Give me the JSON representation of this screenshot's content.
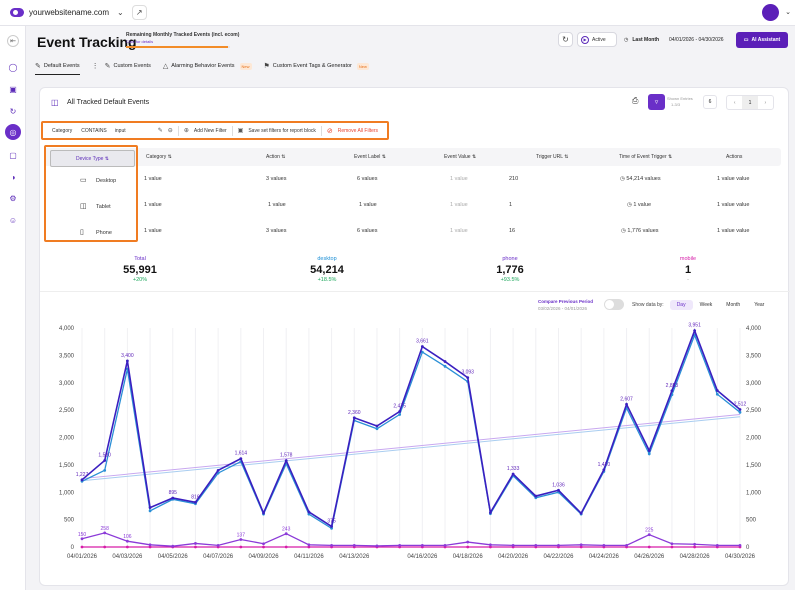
{
  "topbar": {
    "website": "yourwebsitename.com"
  },
  "header": {
    "title": "Event Tracking",
    "tracked_label": "Remaining Monthly Tracked Events (incl. ecom)",
    "tracked_link": "Click for details",
    "tracked_fill_fraction": 0.98,
    "active_label": "Active",
    "period_label": "Last Month",
    "date_range": "04/01/2026 - 04/30/2026",
    "ai_label": "AI Assistant"
  },
  "tabs": [
    {
      "label": "Default Events",
      "new": ""
    },
    {
      "label": "Custom Events",
      "new": ""
    },
    {
      "label": "Alarming Behavior Events",
      "new": "New"
    },
    {
      "label": "Custom Event Tags & Generator",
      "new": "New"
    }
  ],
  "card": {
    "title": "All Tracked Default Events",
    "shown_label": "Shown Entries",
    "shown_range": "1-3/3",
    "per_page": "6",
    "page": "1"
  },
  "filter": {
    "field": "Category",
    "operator": "CONTAINS",
    "value": "input",
    "add_label": "Add New Filter",
    "save_label": "Save set filters for report block",
    "remove_label": "Remove All Filters"
  },
  "table": {
    "headers": [
      "Device Type",
      "Category",
      "Action",
      "Event Label",
      "Event Value",
      "Trigger URL",
      "Time of Event Trigger",
      "Actions"
    ],
    "rows": [
      {
        "device": "Desktop",
        "category": "1 value",
        "action": "3 values",
        "label": "6 values",
        "value": "1 value",
        "url": "210",
        "time": "54,214 values",
        "actions": "1 value value"
      },
      {
        "device": "Tablet",
        "category": "1 value",
        "action": "1 value",
        "label": "1 value",
        "value": "1 value",
        "url": "1",
        "time": "1 value",
        "actions": "1 value value"
      },
      {
        "device": "Phone",
        "category": "1 value",
        "action": "3 values",
        "label": "6 values",
        "value": "1 value",
        "url": "16",
        "time": "1,776 values",
        "actions": "1 value value"
      }
    ]
  },
  "kpis": [
    {
      "label": "Total",
      "value": "55,991",
      "change": "+20%",
      "color": "#6a2fc8"
    },
    {
      "label": "desktop",
      "value": "54,214",
      "change": "+18.5%",
      "color": "#1c8fd6"
    },
    {
      "label": "phone",
      "value": "1,776",
      "change": "+93.5%",
      "color": "#6a2fc8"
    },
    {
      "label": "mobile",
      "value": "1",
      "change": "-",
      "color": "#d61ca8"
    }
  ],
  "compare": {
    "label": "Compare Previous Period",
    "range": "03/02/2026 - 04/01/2026"
  },
  "show_by": {
    "label": "Show data by:",
    "options": [
      "Day",
      "Week",
      "Month",
      "Year"
    ],
    "selected": "Day"
  },
  "chart_data": {
    "type": "line",
    "x": [
      "04/01/2026",
      "04/02/2026",
      "04/03/2026",
      "04/04/2026",
      "04/05/2026",
      "04/06/2026",
      "04/07/2026",
      "04/08/2026",
      "04/09/2026",
      "04/10/2026",
      "04/11/2026",
      "04/12/2026",
      "04/13/2026",
      "04/14/2026",
      "04/15/2026",
      "04/16/2026",
      "04/17/2026",
      "04/18/2026",
      "04/19/2026",
      "04/20/2026",
      "04/21/2026",
      "04/22/2026",
      "04/23/2026",
      "04/24/2026",
      "04/25/2026",
      "04/26/2026",
      "04/27/2026",
      "04/28/2026",
      "04/29/2026",
      "04/30/2026"
    ],
    "xticks": [
      "04/01/2026",
      "04/03/2026",
      "04/05/2026",
      "04/07/2026",
      "04/09/2026",
      "04/11/2026",
      "04/13/2026",
      "04/16/2026",
      "04/18/2026",
      "04/20/2026",
      "04/22/2026",
      "04/24/2026",
      "04/26/2026",
      "04/28/2026",
      "04/30/2026"
    ],
    "yticks": [
      "0",
      "500",
      "1,000",
      "1,500",
      "2,000",
      "2,500",
      "3,000",
      "3,500",
      "4,000"
    ],
    "ylim": [
      0,
      4000
    ],
    "series": [
      {
        "name": "Total",
        "color": "#3a1fc0",
        "values": [
          1227,
          1580,
          3400,
          720,
          895,
          816,
          1400,
          1614,
          620,
          1578,
          640,
          375,
          2360,
          2210,
          2475,
          3661,
          3387,
          3093,
          630,
          1333,
          930,
          1036,
          616,
          1410,
          2607,
          1760,
          2853,
          3951,
          2858,
          2512
        ]
      },
      {
        "name": "desktop",
        "color": "#2a8fd6",
        "values": [
          1200,
          1400,
          3250,
          660,
          870,
          790,
          1350,
          1560,
          600,
          1520,
          600,
          340,
          2310,
          2160,
          2420,
          3560,
          3300,
          3020,
          610,
          1300,
          900,
          1000,
          600,
          1380,
          2540,
          1700,
          2780,
          3870,
          2790,
          2460
        ]
      },
      {
        "name": "phone",
        "color": "#8b3ad8",
        "values": [
          150,
          258,
          106,
          40,
          15,
          65,
          30,
          137,
          60,
          243,
          40,
          30,
          30,
          20,
          30,
          30,
          30,
          90,
          40,
          30,
          30,
          30,
          40,
          30,
          30,
          225,
          60,
          50,
          30,
          30
        ]
      },
      {
        "name": "mobile",
        "color": "#d61ca8",
        "values": [
          0,
          0,
          0,
          0,
          0,
          0,
          0,
          0,
          0,
          0,
          0,
          0,
          0,
          0,
          0,
          0,
          0,
          0,
          0,
          0,
          0,
          0,
          0,
          0,
          0,
          0,
          0,
          0,
          0,
          0
        ]
      }
    ],
    "point_labels": [
      {
        "i": 0,
        "text": "1,227"
      },
      {
        "i": 1,
        "text": "1,580"
      },
      {
        "i": 2,
        "text": "3,400"
      },
      {
        "i": 4,
        "text": "895"
      },
      {
        "i": 5,
        "text": "816"
      },
      {
        "i": 7,
        "text": "1,614"
      },
      {
        "i": 9,
        "text": "1,578"
      },
      {
        "i": 11,
        "text": "375"
      },
      {
        "i": 12,
        "text": "2,360"
      },
      {
        "i": 14,
        "text": "2,475"
      },
      {
        "i": 15,
        "text": "3,661"
      },
      {
        "i": 17,
        "text": "3,093"
      },
      {
        "i": 19,
        "text": "1,333"
      },
      {
        "i": 21,
        "text": "1,036"
      },
      {
        "i": 23,
        "text": "1,410"
      },
      {
        "i": 24,
        "text": "2,607"
      },
      {
        "i": 26,
        "text": "2,853"
      },
      {
        "i": 27,
        "text": "3,951"
      },
      {
        "i": 29,
        "text": "2,512"
      }
    ],
    "trend": {
      "start": 1250,
      "end": 2420
    }
  }
}
